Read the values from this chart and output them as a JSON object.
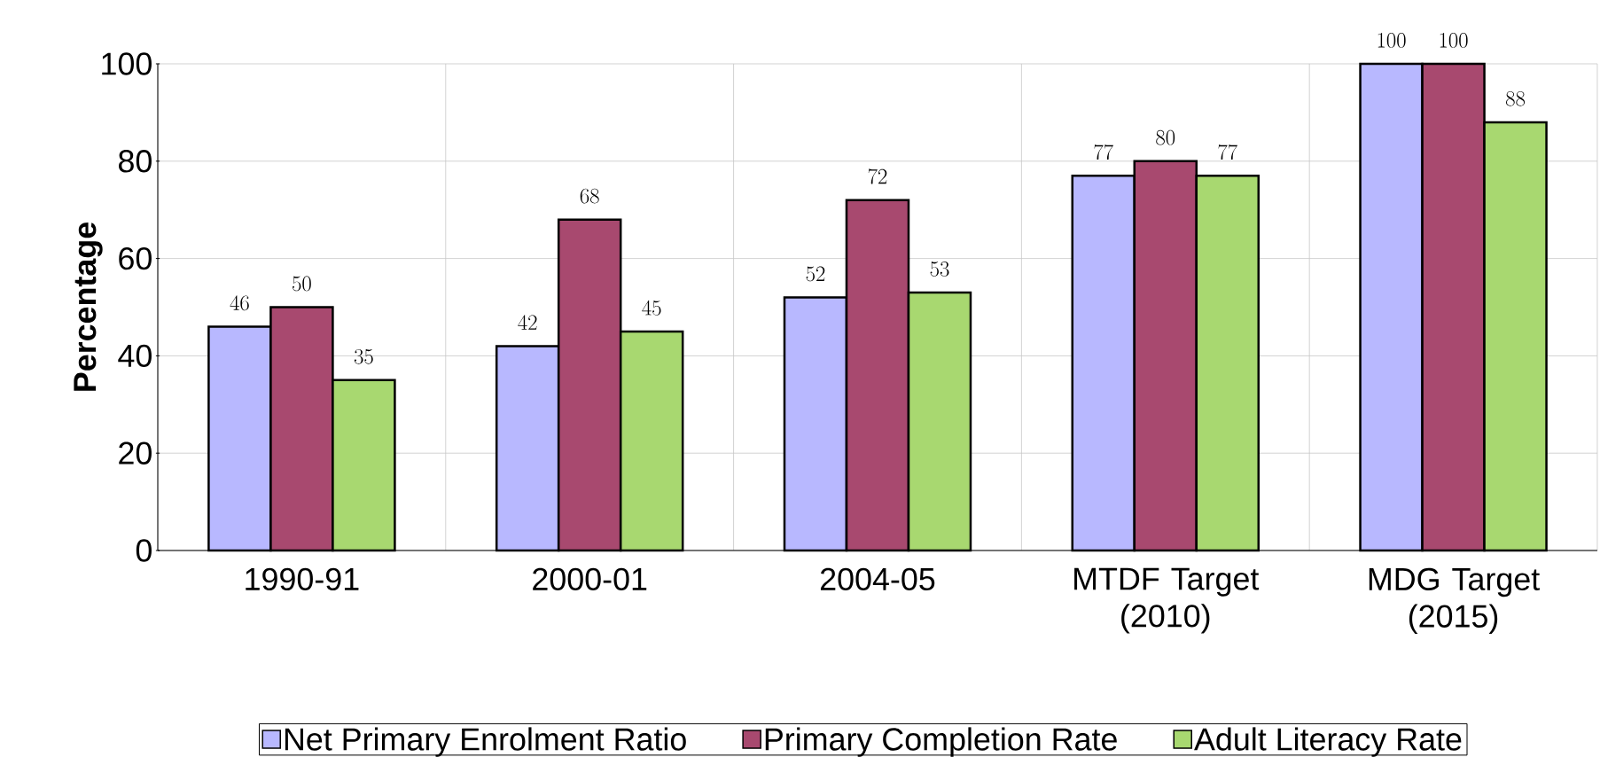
{
  "chart_data": {
    "type": "bar",
    "ylabel": "Percentage",
    "categories": [
      "1990-91",
      "2000-01",
      "2004-05",
      "MTDF Target (2010)",
      "MDG Target (2015)"
    ],
    "series": [
      {
        "name": "Net Primary Enrolment Ratio",
        "color": "#b8b8ff",
        "values": [
          46,
          42,
          52,
          77,
          100
        ]
      },
      {
        "name": "Primary Completion Rate",
        "color": "#a8496f",
        "values": [
          50,
          68,
          72,
          80,
          100
        ]
      },
      {
        "name": "Adult Literacy Rate",
        "color": "#a8d870",
        "values": [
          35,
          45,
          53,
          77,
          88
        ]
      }
    ],
    "ylim": [
      0,
      100
    ],
    "yticks": [
      0,
      20,
      40,
      60,
      80,
      100
    ],
    "grid": true,
    "legend": "bottom",
    "data_labels": true
  }
}
